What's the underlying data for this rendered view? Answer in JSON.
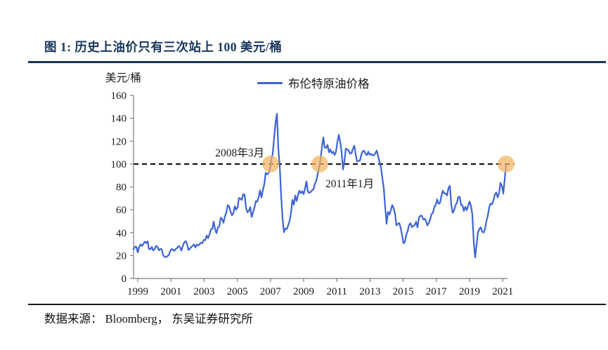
{
  "figure": {
    "title": "图 1:  历史上油价只有三次站上 100 美元/桶",
    "unit_label": "美元/桶",
    "source_text": "数据来源： Bloomberg， 东吴证券研究所"
  },
  "colors": {
    "title_navy": "#17365D",
    "line_blue": "#3D63D8",
    "marker_orange": "#F3B35F",
    "axis_gray": "#7f7f7f",
    "reference_black": "#000000"
  },
  "chart_data": {
    "type": "line",
    "ylabel": "美元/桶",
    "legend": [
      {
        "name": "布伦特原油价格",
        "color": "#3D63D8"
      }
    ],
    "ylim": [
      0,
      160
    ],
    "y_ticks": [
      0,
      20,
      40,
      60,
      80,
      100,
      120,
      140,
      160
    ],
    "x_tick_years": [
      1999,
      2001,
      2003,
      2005,
      2007,
      2009,
      2011,
      2013,
      2015,
      2017,
      2019,
      2021
    ],
    "reference_line": 100,
    "grid": false,
    "legend_position": "top-center",
    "x_start_year": 1999,
    "points_per_year": 12,
    "series": [
      {
        "name": "布伦特原油价格",
        "color": "#3D63D8",
        "values": [
          25.5,
          27.8,
          27.5,
          22.8,
          27.7,
          29.8,
          28.4,
          30.1,
          32.1,
          31.0,
          32.5,
          25.5,
          25.6,
          27.5,
          24.5,
          25.6,
          28.4,
          27.8,
          24.6,
          25.7,
          25.6,
          20.5,
          18.9,
          18.7,
          19.4,
          20.3,
          23.7,
          25.7,
          25.3,
          24.1,
          25.8,
          26.6,
          28.4,
          27.5,
          24.3,
          28.3,
          31.3,
          32.7,
          30.5,
          24.9,
          25.8,
          27.6,
          28.4,
          29.8,
          27.1,
          29.6,
          28.8,
          29.9,
          31.3,
          30.9,
          33.8,
          33.4,
          37.6,
          35.1,
          38.3,
          43.0,
          43.3,
          49.8,
          43.1,
          39.6,
          44.5,
          45.5,
          53.1,
          52.0,
          48.6,
          54.4,
          57.5,
          64.1,
          62.9,
          58.5,
          55.2,
          56.9,
          63.1,
          60.2,
          62.1,
          70.4,
          69.8,
          68.6,
          73.7,
          73.2,
          61.7,
          57.8,
          58.9,
          62.3,
          53.7,
          57.6,
          62.1,
          67.5,
          67.2,
          71.1,
          77.0,
          70.8,
          77.2,
          82.3,
          92.4,
          90.9,
          92.0,
          95.0,
          103.7,
          109.1,
          122.8,
          136.0,
          144.0,
          113.2,
          98.1,
          71.9,
          52.5,
          40.4,
          43.6,
          43.2,
          46.5,
          50.2,
          57.3,
          68.6,
          64.4,
          72.5,
          67.7,
          72.8,
          76.7,
          74.5,
          76.2,
          73.7,
          78.8,
          84.8,
          75.9,
          74.8,
          75.6,
          77.1,
          77.8,
          82.7,
          85.3,
          91.4,
          96.5,
          104.0,
          114.6,
          123.3,
          114.5,
          114.0,
          116.8,
          110.2,
          112.8,
          109.5,
          110.8,
          107.9,
          110.7,
          119.3,
          125.4,
          119.8,
          110.3,
          95.2,
          102.6,
          113.4,
          112.9,
          111.7,
          109.1,
          109.5,
          112.9,
          116.1,
          108.5,
          102.3,
          102.6,
          102.9,
          107.9,
          111.3,
          111.6,
          109.1,
          107.8,
          110.8,
          108.1,
          108.9,
          107.5,
          107.8,
          109.5,
          111.8,
          106.8,
          101.6,
          97.1,
          87.4,
          79.0,
          62.3,
          47.8,
          58.1,
          55.9,
          59.5,
          64.1,
          61.5,
          56.6,
          46.5,
          47.6,
          48.4,
          44.3,
          38.0,
          30.7,
          32.2,
          38.2,
          41.6,
          46.7,
          48.3,
          44.9,
          45.8,
          46.6,
          49.5,
          44.7,
          53.3,
          54.6,
          54.9,
          51.6,
          52.3,
          50.3,
          46.4,
          48.5,
          51.7,
          56.2,
          57.5,
          62.7,
          64.4,
          69.1,
          65.3,
          66.0,
          72.1,
          76.7,
          74.4,
          74.3,
          72.5,
          78.9,
          81.0,
          64.8,
          57.4,
          59.4,
          64.0,
          66.1,
          71.2,
          71.3,
          64.2,
          63.9,
          59.0,
          62.8,
          59.7,
          63.2,
          67.3,
          63.7,
          55.7,
          32.0,
          18.4,
          29.4,
          40.3,
          43.2,
          44.7,
          40.9,
          40.2,
          42.7,
          50.2,
          54.8,
          62.3,
          65.4,
          64.8,
          68.3,
          73.4,
          75.2,
          70.8,
          74.5,
          83.5,
          81.1,
          74.2,
          86.5,
          100.0
        ]
      }
    ],
    "markers": [
      {
        "x_index": 97.5,
        "value": 100,
        "label": "2008年3月",
        "label_side": "above-left"
      },
      {
        "x_index": 132.5,
        "value": 100,
        "label": "2011年1月",
        "label_side": "below-right"
      },
      {
        "x_index": 265,
        "value": 100,
        "label": "",
        "label_side": "none"
      }
    ]
  }
}
